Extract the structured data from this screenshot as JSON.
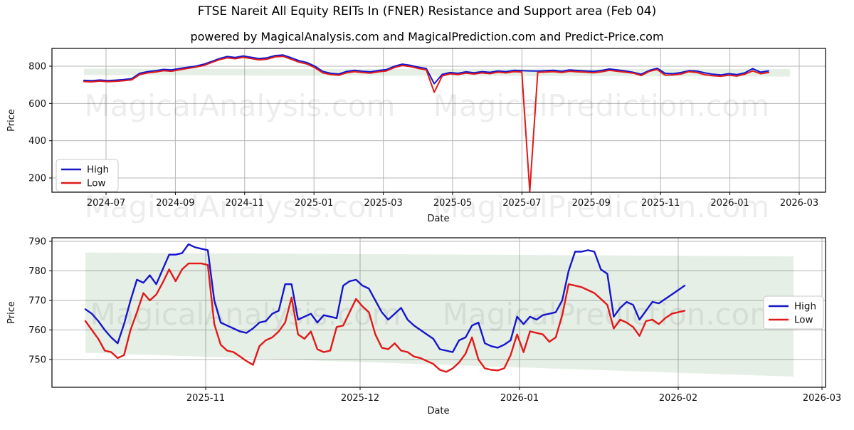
{
  "title": "FTSE Nareit All Equity REITs In (FNER) Resistance and Support area (Feb 04)",
  "subtitle": "powered by MagicalAnalysis.com and MagicalPrediction.com and Predict-Price.com",
  "watermarks": {
    "left_text": "MagicalAnalysis.com",
    "right_text": "MagicalPrediction.com"
  },
  "colors": {
    "high_line": "#1616cc",
    "low_line": "#e11919",
    "band_fill": "#3c823c",
    "grid": "#b4b4b4",
    "spine": "#000000"
  },
  "chart_data": [
    {
      "type": "line",
      "name": "overview",
      "xlabel": "Date",
      "ylabel": "Price",
      "yticks": [
        200,
        400,
        600,
        800
      ],
      "ylim": [
        123.5,
        895.6
      ],
      "xticks": [
        "2024-07",
        "2024-09",
        "2024-11",
        "2025-01",
        "2025-03",
        "2025-05",
        "2025-07",
        "2025-09",
        "2025-11",
        "2026-01",
        "2026-03"
      ],
      "x_start": "2024-06-10",
      "x_end": "2026-02-04",
      "interval": "weekly",
      "grid": true,
      "legend": [
        "High",
        "Low"
      ],
      "legend_position": "lower left",
      "band": {
        "meaning": "Resistance and Support area",
        "resistance": [
          786.3,
          784.8
        ],
        "support": [
          752.3,
          744.0
        ]
      },
      "series": [
        {
          "name": "High",
          "values": [
            724,
            722,
            726,
            723,
            725,
            728,
            733,
            762,
            771,
            776,
            783,
            780,
            788,
            794,
            800,
            810,
            825,
            841,
            852,
            847,
            855,
            848,
            841,
            845,
            857,
            860,
            846,
            830,
            820,
            800,
            772,
            762,
            758,
            772,
            778,
            773,
            770,
            777,
            782,
            800,
            811,
            805,
            795,
            788,
            706,
            756,
            766,
            762,
            770,
            765,
            771,
            767,
            775,
            771,
            778,
            776,
            775,
            774,
            776,
            778,
            773,
            780,
            777,
            775,
            772,
            777,
            785,
            780,
            775,
            767,
            757,
            777,
            789,
            762,
            760,
            766,
            776,
            774,
            764,
            757,
            753,
            760,
            755,
            764,
            787,
            768,
            775
          ]
        },
        {
          "name": "Low",
          "values": [
            718,
            716,
            720,
            717,
            719,
            722,
            727,
            755,
            764,
            769,
            776,
            773,
            781,
            788,
            795,
            803,
            819,
            835,
            845,
            840,
            848,
            841,
            834,
            838,
            850,
            853,
            838,
            822,
            812,
            792,
            764,
            755,
            751,
            765,
            771,
            766,
            763,
            770,
            775,
            793,
            804,
            798,
            788,
            780,
            660,
            748,
            759,
            755,
            763,
            758,
            764,
            760,
            768,
            764,
            771,
            769,
            128,
            767,
            769,
            771,
            766,
            773,
            770,
            768,
            765,
            770,
            778,
            773,
            768,
            763,
            750,
            772,
            782,
            752,
            753,
            758,
            771,
            766,
            754,
            749,
            746,
            752,
            747,
            757,
            775,
            760,
            766
          ]
        }
      ]
    },
    {
      "type": "line",
      "name": "zoomed-recent",
      "xlabel": "Date",
      "ylabel": "Price",
      "yticks": [
        750,
        760,
        770,
        780,
        790
      ],
      "ylim": [
        740.6,
        791.2
      ],
      "xticks": [
        "2025-11",
        "2025-12",
        "2026-01",
        "2026-02",
        "2026-03"
      ],
      "x_start": "2025-10-08",
      "x_end": "2026-02-02",
      "interval": "daily",
      "grid": true,
      "legend": [
        "High",
        "Low"
      ],
      "legend_position": "center right",
      "band": {
        "meaning": "Resistance and Support area",
        "resistance": [
          786.2,
          784.9
        ],
        "support": [
          752.3,
          744.2
        ]
      },
      "series": [
        {
          "name": "High",
          "values": [
            767,
            765.5,
            763,
            760,
            757.5,
            755.5,
            762,
            770,
            777,
            776,
            778.5,
            775.5,
            780.5,
            785.5,
            785.5,
            786,
            789,
            788,
            787.5,
            787,
            770,
            762.5,
            761.5,
            760.5,
            759.5,
            759,
            760.5,
            762.5,
            763,
            765.5,
            766.5,
            775.5,
            775.5,
            763.5,
            764.5,
            765.5,
            762.5,
            765,
            764.5,
            764,
            775,
            776.5,
            777,
            775,
            774,
            770,
            766,
            763.5,
            765.5,
            767.5,
            763.5,
            761.5,
            760,
            758.5,
            757,
            753.5,
            753,
            752.5,
            756.5,
            757.5,
            761.5,
            762.5,
            755.5,
            754.5,
            754,
            755,
            756.5,
            764.5,
            762,
            764.5,
            763.5,
            765,
            765.5,
            766,
            770,
            780,
            786.5,
            786.5,
            787,
            786.5,
            780.5,
            779,
            764.5,
            767.5,
            769.5,
            768.5,
            763.5,
            766.5,
            769.5,
            769,
            770.5,
            772,
            773.5,
            775
          ]
        },
        {
          "name": "Low",
          "values": [
            763,
            760,
            757,
            753,
            752.5,
            750.5,
            751.5,
            760,
            766,
            772.5,
            770,
            772,
            776,
            780.5,
            776.5,
            780.5,
            782.5,
            782.5,
            782.5,
            782,
            762,
            755,
            753,
            752.5,
            751,
            749.5,
            748.2,
            754.5,
            756.5,
            757.5,
            759.5,
            762.5,
            771,
            758.5,
            757,
            759.5,
            753.5,
            752.5,
            753,
            761,
            761.5,
            766,
            770.5,
            768,
            766,
            758.5,
            754,
            753.5,
            755.5,
            753,
            752.5,
            751,
            750.5,
            749.5,
            748.5,
            746.5,
            745.8,
            747,
            749,
            752,
            757.5,
            750,
            747,
            746.5,
            746.3,
            747,
            751.5,
            758.5,
            752.5,
            759.5,
            759,
            758.5,
            756,
            757.5,
            765,
            775.5,
            775,
            774.5,
            773.5,
            772.5,
            770.5,
            768.5,
            760.5,
            763.5,
            762.5,
            761,
            758,
            763,
            763.5,
            762,
            764,
            765.5,
            766,
            766.5
          ]
        }
      ]
    }
  ]
}
